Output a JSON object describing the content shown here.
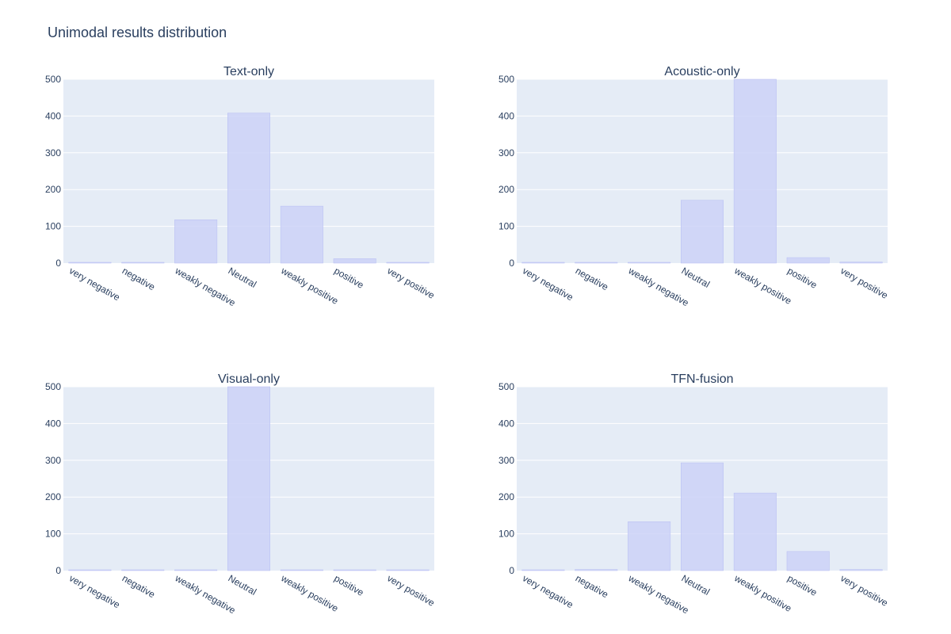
{
  "title": "Unimodal results distribution",
  "colors": {
    "plot_bg": "#E5ECF6",
    "grid": "#ffffff",
    "bar_fill": "#CCD2F7",
    "bar_line": "#B7BEF3",
    "text": "#2a3f5f"
  },
  "chart_data": [
    {
      "type": "bar",
      "title": "Text-only",
      "categories": [
        "very negative",
        "negative",
        "weakly negative",
        "Neutral",
        "weakly positive",
        "positive",
        "very positive"
      ],
      "values": [
        1,
        1,
        118,
        408,
        155,
        12,
        1
      ],
      "ylim": [
        0,
        500
      ],
      "yticks": [
        0,
        100,
        200,
        300,
        400,
        500
      ],
      "grid": true
    },
    {
      "type": "bar",
      "title": "Acoustic-only",
      "categories": [
        "very negative",
        "negative",
        "weakly negative",
        "Neutral",
        "weakly positive",
        "positive",
        "very positive"
      ],
      "values": [
        1,
        1,
        1,
        171,
        500,
        15,
        3
      ],
      "ylim": [
        0,
        500
      ],
      "yticks": [
        0,
        100,
        200,
        300,
        400,
        500
      ],
      "grid": true
    },
    {
      "type": "bar",
      "title": "Visual-only",
      "categories": [
        "very negative",
        "negative",
        "weakly negative",
        "Neutral",
        "weakly positive",
        "positive",
        "very positive"
      ],
      "values": [
        1,
        1,
        1,
        500,
        1,
        1,
        1
      ],
      "ylim": [
        0,
        500
      ],
      "yticks": [
        0,
        100,
        200,
        300,
        400,
        500
      ],
      "grid": true
    },
    {
      "type": "bar",
      "title": "TFN-fusion",
      "categories": [
        "very negative",
        "negative",
        "weakly negative",
        "Neutral",
        "weakly positive",
        "positive",
        "very positive"
      ],
      "values": [
        1,
        3,
        133,
        293,
        211,
        52,
        3
      ],
      "ylim": [
        0,
        500
      ],
      "yticks": [
        0,
        100,
        200,
        300,
        400,
        500
      ],
      "grid": true
    }
  ]
}
